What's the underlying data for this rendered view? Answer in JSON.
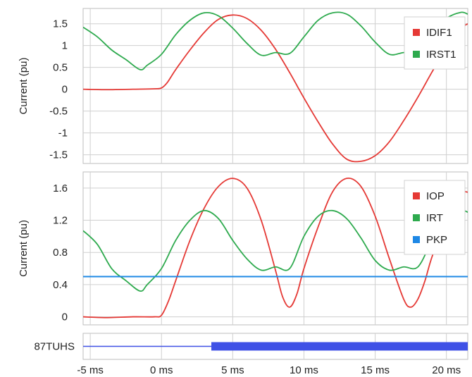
{
  "chart_data": [
    {
      "type": "line",
      "title": "",
      "xlabel": "",
      "ylabel": "Current (pu)",
      "xlim": [
        -5.5,
        21.5
      ],
      "ylim": [
        -1.7,
        1.85
      ],
      "yticks": [
        1.5,
        1,
        0.5,
        0,
        -0.5,
        -1,
        -1.5
      ],
      "ytick_labels": [
        "1.5",
        "1",
        "0.5",
        "0",
        "-0.5",
        "-1",
        "-1.5"
      ],
      "xticks": [
        -5,
        0,
        5,
        10,
        15,
        20
      ],
      "grid": true,
      "legend_position": "top-right",
      "series": [
        {
          "name": "IDIF1",
          "color": "#e53935",
          "x": [
            -5.5,
            -4,
            -2,
            -0.5,
            0,
            0.4,
            1,
            2,
            3,
            4,
            5,
            6,
            7,
            8,
            9,
            10,
            11,
            12,
            13,
            14,
            15,
            16,
            17,
            18,
            19,
            20,
            21,
            21.5
          ],
          "y": [
            0,
            -0.01,
            0,
            0.01,
            0.03,
            0.15,
            0.45,
            0.9,
            1.3,
            1.6,
            1.7,
            1.62,
            1.35,
            0.92,
            0.38,
            -0.2,
            -0.75,
            -1.25,
            -1.6,
            -1.65,
            -1.52,
            -1.2,
            -0.72,
            -0.18,
            0.4,
            0.95,
            1.38,
            1.5
          ]
        },
        {
          "name": "IRST1",
          "color": "#2eaa4e",
          "x": [
            -5.5,
            -4.5,
            -3.5,
            -2.5,
            -1.5,
            -1,
            0,
            1,
            2,
            3,
            4,
            5,
            6,
            7,
            8,
            9,
            10,
            11,
            12,
            13,
            14,
            15,
            16,
            17,
            18,
            19,
            20,
            21,
            21.5
          ],
          "y": [
            1.42,
            1.2,
            0.9,
            0.68,
            0.45,
            0.55,
            0.8,
            1.25,
            1.58,
            1.75,
            1.68,
            1.4,
            1.05,
            0.78,
            0.84,
            0.82,
            1.2,
            1.58,
            1.75,
            1.72,
            1.45,
            1.08,
            0.8,
            0.84,
            0.85,
            1.25,
            1.62,
            1.76,
            1.72
          ]
        }
      ]
    },
    {
      "type": "line",
      "title": "",
      "xlabel": "",
      "ylabel": "Current (pu)",
      "xlim": [
        -5.5,
        21.5
      ],
      "ylim": [
        -0.1,
        1.8
      ],
      "yticks": [
        1.6,
        1.2,
        0.8,
        0.4,
        0
      ],
      "ytick_labels": [
        "1.6",
        "1.2",
        "0.8",
        "0.4",
        "0"
      ],
      "xticks": [
        -5,
        0,
        5,
        10,
        15,
        20
      ],
      "grid": true,
      "legend_position": "top-right",
      "series": [
        {
          "name": "IOP",
          "color": "#e53935",
          "x": [
            -5.5,
            -4,
            -2,
            -0.5,
            0,
            0.5,
            1,
            2,
            3,
            4,
            5,
            6,
            7,
            8,
            8.5,
            9,
            9.5,
            10,
            11,
            12,
            13,
            14,
            15,
            16,
            17,
            17.5,
            18,
            18.5,
            19,
            20,
            21,
            21.5
          ],
          "y": [
            0,
            -0.01,
            0,
            0,
            0.02,
            0.2,
            0.45,
            0.95,
            1.35,
            1.62,
            1.72,
            1.6,
            1.2,
            0.58,
            0.25,
            0.12,
            0.28,
            0.6,
            1.12,
            1.55,
            1.72,
            1.62,
            1.25,
            0.72,
            0.22,
            0.12,
            0.22,
            0.45,
            0.75,
            1.2,
            1.52,
            1.55
          ]
        },
        {
          "name": "IRT",
          "color": "#2eaa4e",
          "x": [
            -5.5,
            -4.5,
            -3.5,
            -2.5,
            -1.5,
            -1,
            0,
            1,
            2,
            3,
            4,
            5,
            6,
            7,
            8,
            9,
            10,
            11,
            12,
            13,
            14,
            15,
            16,
            17,
            18,
            19,
            20,
            21,
            21.5
          ],
          "y": [
            1.07,
            0.9,
            0.6,
            0.45,
            0.32,
            0.4,
            0.6,
            0.95,
            1.2,
            1.32,
            1.22,
            0.95,
            0.72,
            0.58,
            0.62,
            0.6,
            1.0,
            1.25,
            1.32,
            1.22,
            0.98,
            0.7,
            0.58,
            0.62,
            0.62,
            0.95,
            1.22,
            1.32,
            1.3
          ]
        },
        {
          "name": "PKP",
          "color": "#1e88e5",
          "x": [
            -5.5,
            21.5
          ],
          "y": [
            0.5,
            0.5
          ]
        }
      ]
    },
    {
      "type": "line",
      "title": "",
      "ylabel": "87TUHS",
      "xlim": [
        -5.5,
        21.5
      ],
      "xticks": [
        -5,
        0,
        5,
        10,
        15,
        20
      ],
      "xtick_labels": [
        "-5 ms",
        "0 ms",
        "5 ms",
        "10 ms",
        "15 ms",
        "20 ms"
      ],
      "grid": true,
      "series": [
        {
          "name": "87TUHS",
          "color": "#3f51e6",
          "x": [
            -5.5,
            3.5,
            3.5,
            21.5
          ],
          "y": [
            0,
            0,
            1,
            1
          ]
        }
      ]
    }
  ]
}
